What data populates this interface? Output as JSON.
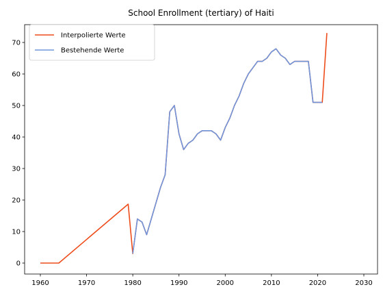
{
  "chart_data": {
    "type": "line",
    "title": "School Enrollment (tertiary) of Haiti",
    "xlabel": "",
    "ylabel": "",
    "xlim": [
      1960,
      2030
    ],
    "ylim": [
      0,
      75
    ],
    "xticks": [
      1960,
      1970,
      1980,
      1990,
      2000,
      2010,
      2020,
      2030
    ],
    "yticks": [
      0,
      10,
      20,
      30,
      40,
      50,
      60,
      70
    ],
    "grid": false,
    "legend_position": "top-left",
    "series": [
      {
        "name": "Interpolierte Werte",
        "color": "#ee4b1a",
        "points": [
          [
            1960,
            0
          ],
          [
            1964,
            0
          ],
          [
            1979,
            18.7
          ],
          [
            1980,
            3
          ],
          [
            1981,
            14
          ],
          [
            1982,
            13
          ],
          [
            1983,
            9
          ],
          [
            1984,
            14
          ],
          [
            1985,
            19
          ],
          [
            1986,
            24
          ],
          [
            1987,
            28
          ],
          [
            1988,
            48
          ],
          [
            1989,
            50
          ],
          [
            1990,
            41
          ],
          [
            1991,
            36
          ],
          [
            1992,
            38
          ],
          [
            1993,
            39
          ],
          [
            1994,
            41
          ],
          [
            1995,
            42
          ],
          [
            1996,
            42
          ],
          [
            1997,
            42
          ],
          [
            1998,
            41
          ],
          [
            1999,
            39
          ],
          [
            2000,
            43
          ],
          [
            2001,
            46
          ],
          [
            2002,
            50
          ],
          [
            2003,
            53
          ],
          [
            2004,
            57
          ],
          [
            2005,
            60
          ],
          [
            2006,
            62
          ],
          [
            2007,
            64
          ],
          [
            2008,
            64
          ],
          [
            2009,
            65
          ],
          [
            2010,
            67
          ],
          [
            2011,
            68
          ],
          [
            2012,
            66
          ],
          [
            2013,
            65
          ],
          [
            2014,
            63
          ],
          [
            2015,
            64
          ],
          [
            2016,
            64
          ],
          [
            2017,
            64
          ],
          [
            2018,
            64
          ],
          [
            2019,
            51
          ],
          [
            2020,
            51
          ],
          [
            2021,
            51
          ],
          [
            2022,
            73
          ]
        ]
      },
      {
        "name": "Bestehende Werte",
        "color": "#6f95dc",
        "points": [
          [
            1980,
            3
          ],
          [
            1981,
            14
          ],
          [
            1982,
            13
          ],
          [
            1983,
            9
          ],
          [
            1984,
            14
          ],
          [
            1985,
            19
          ],
          [
            1986,
            24
          ],
          [
            1987,
            28
          ],
          [
            1988,
            48
          ],
          [
            1989,
            50
          ],
          [
            1990,
            41
          ],
          [
            1991,
            36
          ],
          [
            1992,
            38
          ],
          [
            1993,
            39
          ],
          [
            1994,
            41
          ],
          [
            1995,
            42
          ],
          [
            1996,
            42
          ],
          [
            1997,
            42
          ],
          [
            1998,
            41
          ],
          [
            1999,
            39
          ],
          [
            2000,
            43
          ],
          [
            2001,
            46
          ],
          [
            2002,
            50
          ],
          [
            2003,
            53
          ],
          [
            2004,
            57
          ],
          [
            2005,
            60
          ],
          [
            2006,
            62
          ],
          [
            2007,
            64
          ],
          [
            2008,
            64
          ],
          [
            2009,
            65
          ],
          [
            2010,
            67
          ],
          [
            2011,
            68
          ],
          [
            2012,
            66
          ],
          [
            2013,
            65
          ],
          [
            2014,
            63
          ],
          [
            2015,
            64
          ],
          [
            2016,
            64
          ],
          [
            2017,
            64
          ],
          [
            2018,
            64
          ],
          [
            2019,
            51
          ],
          [
            2020,
            51
          ],
          [
            2021,
            51
          ]
        ]
      }
    ]
  }
}
